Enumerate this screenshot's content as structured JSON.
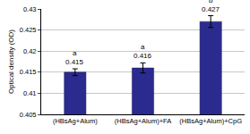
{
  "chart_data": {
    "type": "bar",
    "y_label": "Optical density (OD)",
    "categories": [
      "(HBsAg+Alum)",
      "(HBsAg+Alum)+FA",
      "(HBsAg+Alum)+CpG"
    ],
    "values": [
      0.415,
      0.416,
      0.427
    ],
    "errors": [
      0.0008,
      0.0012,
      0.0014
    ],
    "group_letters": [
      "a",
      "a",
      "b"
    ],
    "color": "#2b2b8f",
    "ylim": [
      0.405,
      0.43
    ],
    "yticks": [
      0.405,
      0.41,
      0.415,
      0.42,
      0.425,
      0.43
    ],
    "grid": true,
    "data_labels": true
  }
}
